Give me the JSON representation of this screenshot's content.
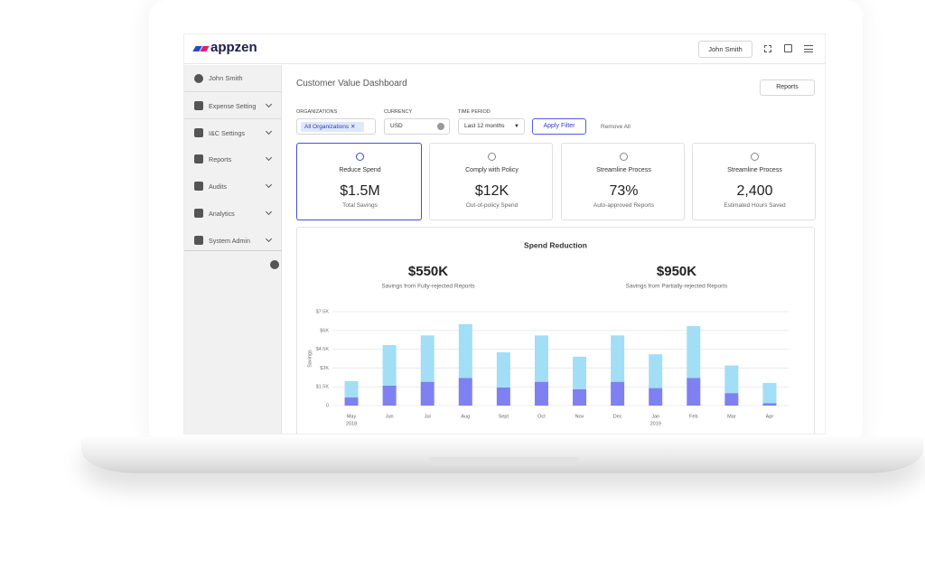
{
  "header": {
    "logo": "appzen",
    "user_button": "John Smith"
  },
  "sidebar": {
    "user": "John Smith",
    "items": [
      "Expense Setting",
      "I&C Settings",
      "Reports",
      "Audits",
      "Analytics",
      "System Admin"
    ]
  },
  "page": {
    "title": "Customer Value Dashboard",
    "reports_button": "Reports"
  },
  "filters": {
    "organizations_label": "ORGANIZATIONS",
    "organizations_value": "All Organizations",
    "currency_label": "CURRENCY",
    "currency_value": "USD",
    "time_period_label": "TIME PERIOD",
    "time_period_value": "Last 12 months",
    "apply_button": "Apply Filter",
    "remove_all": "Remove All"
  },
  "kpi_cards": [
    {
      "title": "Reduce Spend",
      "value": "$1.5M",
      "caption": "Total Savings"
    },
    {
      "title": "Comply with Policy",
      "value": "$12K",
      "caption": "Out-of-policy Spend"
    },
    {
      "title": "Streamline Process",
      "value": "73%",
      "caption": "Auto-approved Reports"
    },
    {
      "title": "Streamline Process",
      "value": "2,400",
      "caption": "Estimated Hours Saved"
    }
  ],
  "chart_data": {
    "type": "stacked_bar",
    "title": "Spend Reduction",
    "summaries": [
      {
        "value": "$550K",
        "caption": "Savings from Fully-rejected Reports"
      },
      {
        "value": "$950K",
        "caption": "Savings from Partially-rejected Reports"
      }
    ],
    "y_label": "Savings",
    "categories": [
      "May",
      "Jun",
      "Jul",
      "Aug",
      "Sept",
      "Oct",
      "Nov",
      "Dec",
      "Jan",
      "Feb",
      "Mar",
      "Apr"
    ],
    "category_years": [
      "2018",
      null,
      null,
      null,
      null,
      null,
      null,
      null,
      "2019",
      null,
      null,
      null
    ],
    "series": [
      {
        "color": "#7f80f2",
        "values": [
          650,
          1600,
          1900,
          2200,
          1450,
          1900,
          1300,
          1900,
          1400,
          2200,
          1000,
          200
        ]
      },
      {
        "color": "#a2def6",
        "values": [
          1300,
          3230,
          3700,
          4300,
          2800,
          3700,
          2600,
          3700,
          2700,
          4150,
          2200,
          1600
        ]
      }
    ],
    "ylim": [
      0,
      7500
    ],
    "yticks": [
      0,
      {
        "value": 1500,
        "label": "$1.5K"
      },
      {
        "value": 3000,
        "label": "$3K"
      },
      {
        "value": 4500,
        "label": "$4.5K"
      },
      {
        "value": 6000,
        "label": "$6K"
      },
      {
        "value": 7500,
        "label": "$7.5K"
      }
    ],
    "grid": true
  }
}
